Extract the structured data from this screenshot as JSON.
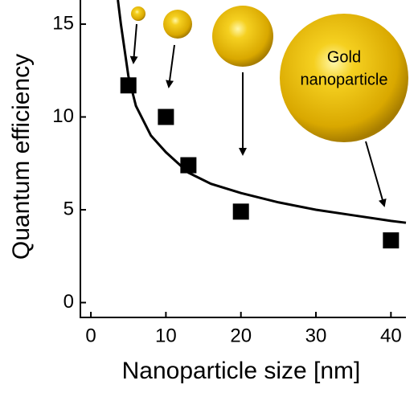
{
  "chart_data": {
    "type": "scatter",
    "xlabel": "Nanoparticle size [nm]",
    "ylabel": "Quantum efficiency",
    "annotation": [
      "Gold",
      "nanoparticle"
    ],
    "series": [
      {
        "kind": "scatter",
        "color": "#000000",
        "x": [
          5,
          10,
          13,
          20,
          40
        ],
        "values": [
          11.7,
          10.0,
          7.4,
          4.9,
          3.35
        ]
      },
      {
        "kind": "line",
        "color": "#000000",
        "x": [
          3.6,
          4,
          5,
          6,
          8,
          10,
          13,
          16,
          20,
          25,
          30,
          35,
          40,
          42
        ],
        "values": [
          16.3,
          15,
          12.2,
          10.6,
          9.0,
          8.1,
          7.0,
          6.4,
          5.9,
          5.4,
          5.0,
          4.7,
          4.4,
          4.3
        ]
      }
    ],
    "xlim": [
      -1.4,
      42
    ],
    "ylim": [
      -0.8,
      16.3
    ],
    "xticks": [
      0,
      10,
      20,
      30,
      40
    ],
    "yticks": [
      0,
      5,
      10,
      15
    ]
  }
}
